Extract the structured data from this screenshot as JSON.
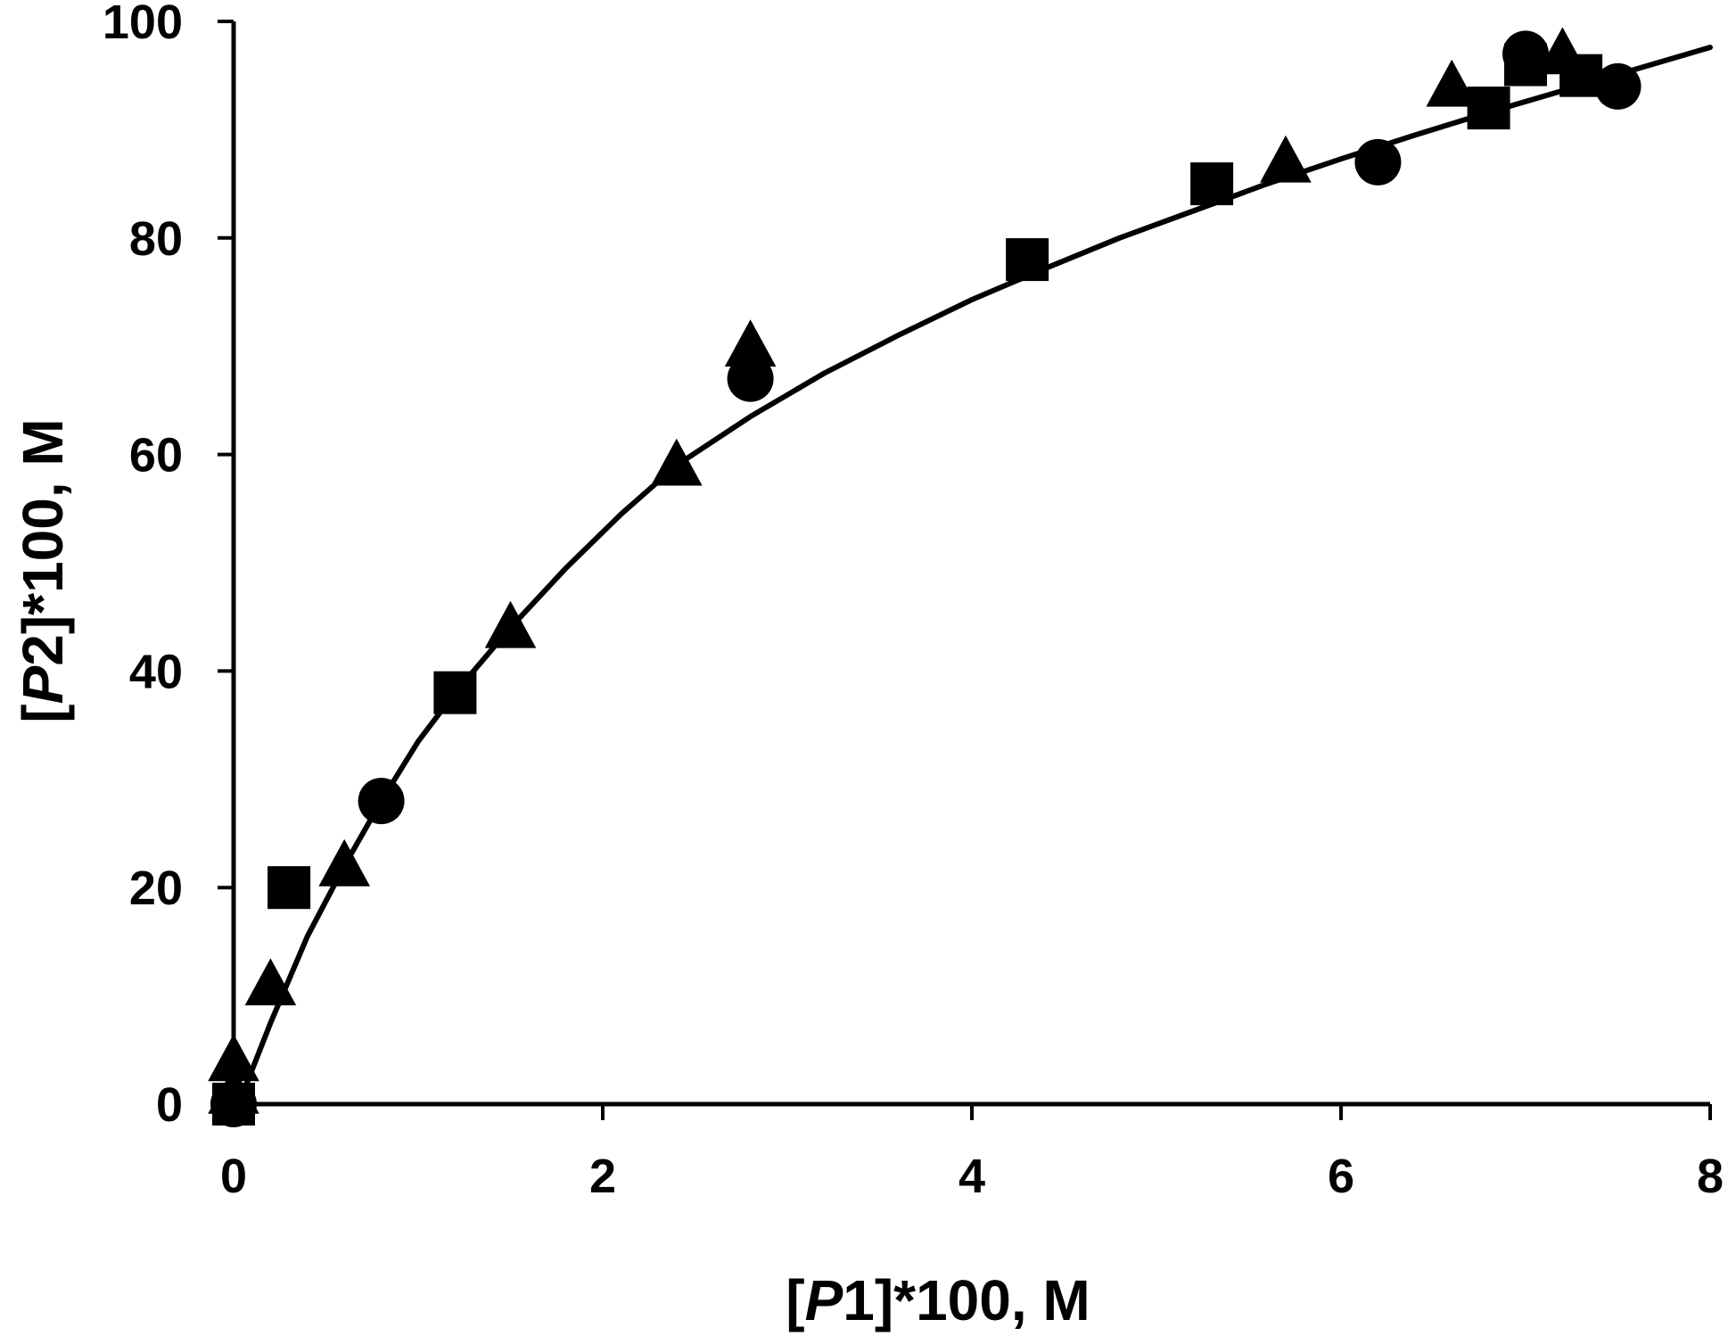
{
  "chart_data": {
    "type": "scatter",
    "title": "",
    "xlabel": {
      "prefix": "[",
      "italic": "P",
      "suffix": "1]*100, M"
    },
    "ylabel": {
      "prefix": "[",
      "italic": "P",
      "suffix": "2]*100, M"
    },
    "xlim": [
      0,
      8
    ],
    "ylim": [
      0,
      100
    ],
    "xticks": [
      0,
      2,
      4,
      6,
      8
    ],
    "yticks": [
      0,
      20,
      40,
      60,
      80,
      100
    ],
    "grid": false,
    "legend": "none",
    "colors": {
      "marks": "#000000",
      "background": "#ffffff"
    },
    "series": [
      {
        "marker": "square",
        "points": [
          [
            0,
            0
          ],
          [
            0.3,
            20
          ],
          [
            1.2,
            38
          ],
          [
            4.3,
            78
          ],
          [
            5.3,
            85
          ],
          [
            6.8,
            92
          ],
          [
            7.0,
            96
          ],
          [
            7.3,
            95
          ]
        ]
      },
      {
        "marker": "triangle",
        "points": [
          [
            0,
            1
          ],
          [
            0,
            4
          ],
          [
            0.2,
            11
          ],
          [
            0.6,
            22
          ],
          [
            1.5,
            44
          ],
          [
            2.4,
            59
          ],
          [
            2.8,
            70
          ],
          [
            5.7,
            87
          ],
          [
            6.6,
            94
          ],
          [
            7.2,
            97
          ]
        ]
      },
      {
        "marker": "circle",
        "points": [
          [
            0,
            0
          ],
          [
            0.8,
            28
          ],
          [
            2.8,
            67
          ],
          [
            6.2,
            87
          ],
          [
            7.0,
            97
          ],
          [
            7.5,
            94
          ]
        ]
      }
    ],
    "fit_curve": {
      "style": "solid",
      "points": [
        [
          0.05,
          1
        ],
        [
          0.2,
          7.5
        ],
        [
          0.4,
          15.5
        ],
        [
          0.6,
          22
        ],
        [
          0.8,
          28
        ],
        [
          1.0,
          33.5
        ],
        [
          1.2,
          38
        ],
        [
          1.5,
          44
        ],
        [
          1.8,
          49.5
        ],
        [
          2.1,
          54.5
        ],
        [
          2.4,
          59
        ],
        [
          2.8,
          63.5
        ],
        [
          3.2,
          67.5
        ],
        [
          3.6,
          71
        ],
        [
          4.0,
          74.3
        ],
        [
          4.4,
          77.2
        ],
        [
          4.8,
          80
        ],
        [
          5.2,
          82.5
        ],
        [
          5.6,
          85
        ],
        [
          6.0,
          87.3
        ],
        [
          6.4,
          89.5
        ],
        [
          6.8,
          91.6
        ],
        [
          7.2,
          93.6
        ],
        [
          7.6,
          95.6
        ],
        [
          8.0,
          97.6
        ]
      ]
    }
  }
}
